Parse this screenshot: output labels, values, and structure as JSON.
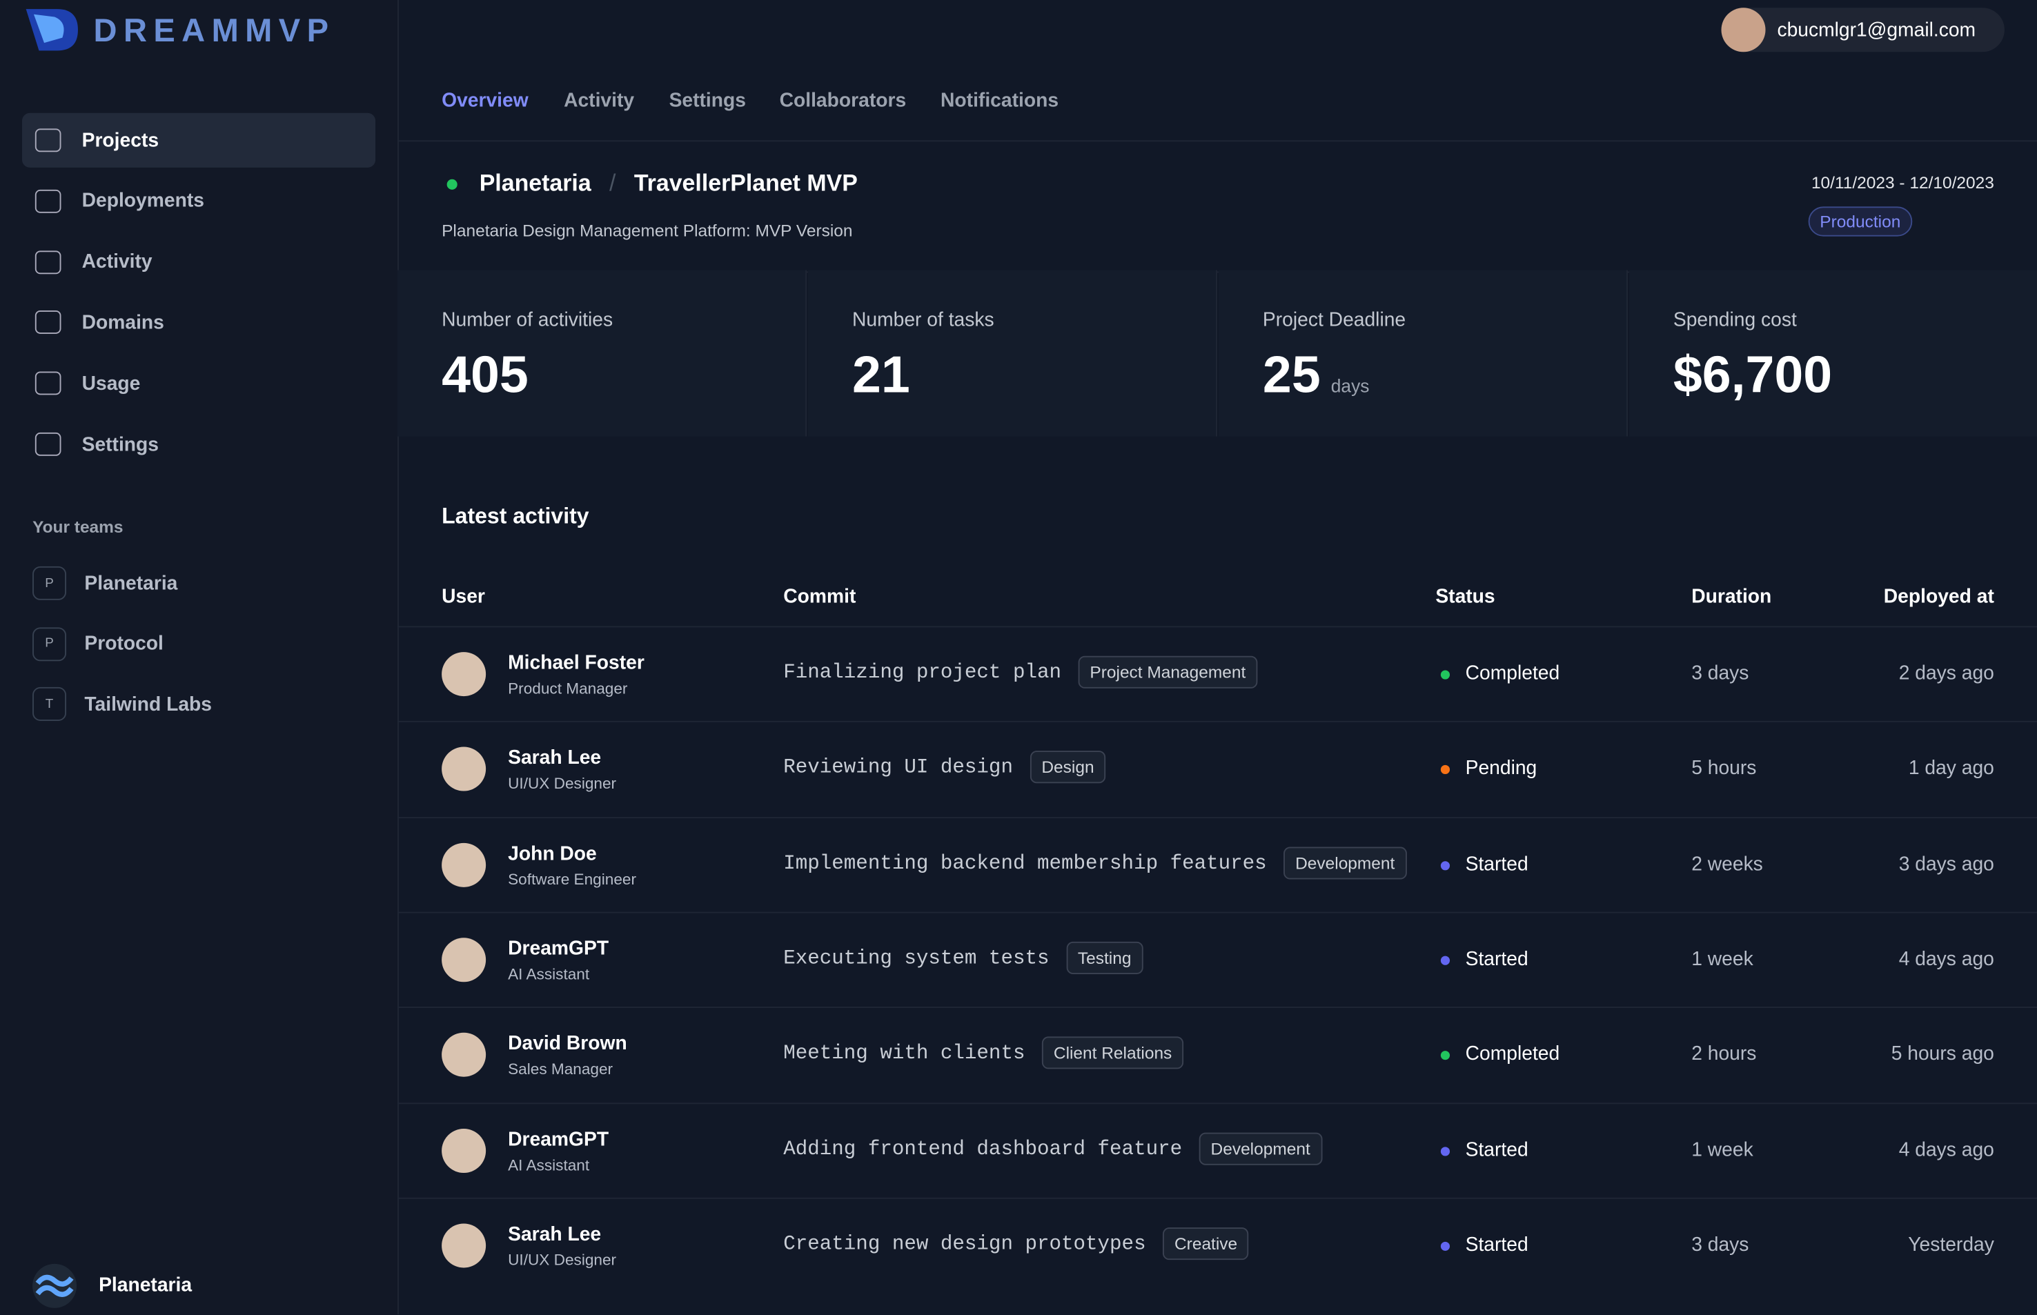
{
  "brand": "DREAMMVP",
  "user_email": "cbucmlgr1@gmail.com",
  "nav": [
    "Projects",
    "Deployments",
    "Activity",
    "Domains",
    "Usage",
    "Settings"
  ],
  "teams_heading": "Your teams",
  "teams": [
    {
      "initial": "P",
      "name": "Planetaria"
    },
    {
      "initial": "P",
      "name": "Protocol"
    },
    {
      "initial": "T",
      "name": "Tailwind Labs"
    }
  ],
  "footer_team": "Planetaria",
  "tabs": [
    "Overview",
    "Activity",
    "Settings",
    "Collaborators",
    "Notifications"
  ],
  "project": {
    "org": "Planetaria",
    "separator": "/",
    "name": "TravellerPlanet MVP",
    "description": "Planetaria Design Management Platform: MVP Version",
    "dates": "10/11/2023 - 12/10/2023",
    "environment": "Production"
  },
  "stats": [
    {
      "label": "Number of activities",
      "value": 405
    },
    {
      "label": "Number of tasks",
      "value": 21
    },
    {
      "label": "Project Deadline",
      "value": 25,
      "unit": "days"
    },
    {
      "label": "Spending cost",
      "value": "$6,700"
    }
  ],
  "activity": {
    "title": "Latest activity",
    "columns": [
      "User",
      "Commit",
      "Status",
      "Duration",
      "Deployed at"
    ],
    "rows": [
      {
        "user": "Michael Foster",
        "role": "Product Manager",
        "commit": "Finalizing project plan",
        "tag": "Project Management",
        "status": "Completed",
        "status_color": "#22c55e",
        "duration": "3 days",
        "deployed": "2 days ago"
      },
      {
        "user": "Sarah Lee",
        "role": "UI/UX Designer",
        "commit": "Reviewing UI design",
        "tag": "Design",
        "status": "Pending",
        "status_color": "#f97316",
        "duration": "5 hours",
        "deployed": "1 day ago"
      },
      {
        "user": "John Doe",
        "role": "Software Engineer",
        "commit": "Implementing backend membership features",
        "tag": "Development",
        "status": "Started",
        "status_color": "#6366f1",
        "duration": "2 weeks",
        "deployed": "3 days ago"
      },
      {
        "user": "DreamGPT",
        "role": "AI Assistant",
        "commit": "Executing system tests",
        "tag": "Testing",
        "status": "Started",
        "status_color": "#6366f1",
        "duration": "1 week",
        "deployed": "4 days ago"
      },
      {
        "user": "David Brown",
        "role": "Sales Manager",
        "commit": "Meeting with clients",
        "tag": "Client Relations",
        "status": "Completed",
        "status_color": "#22c55e",
        "duration": "2 hours",
        "deployed": "5 hours ago"
      },
      {
        "user": "DreamGPT",
        "role": "AI Assistant",
        "commit": "Adding frontend dashboard feature",
        "tag": "Development",
        "status": "Started",
        "status_color": "#6366f1",
        "duration": "1 week",
        "deployed": "4 days ago"
      },
      {
        "user": "Sarah Lee",
        "role": "UI/UX Designer",
        "commit": "Creating new design prototypes",
        "tag": "Creative",
        "status": "Started",
        "status_color": "#6366f1",
        "duration": "3 days",
        "deployed": "Yesterday"
      }
    ]
  }
}
